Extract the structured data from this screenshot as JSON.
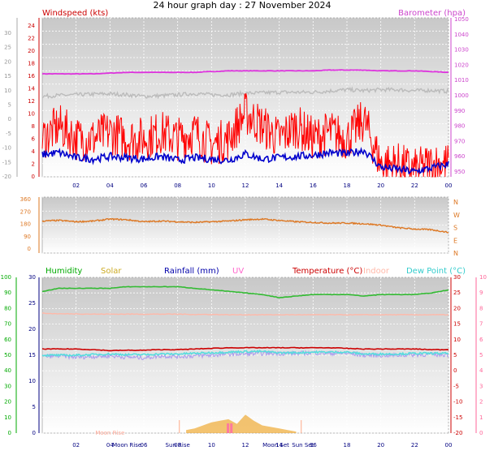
{
  "header": {
    "title": "24 hour graph day : 27 November 2024"
  },
  "x_ticks": [
    "02",
    "04",
    "06",
    "08",
    "10",
    "12",
    "14",
    "16",
    "18",
    "20",
    "22",
    "00"
  ],
  "colors": {
    "gust": "#ff0000",
    "wind": "#0000cc",
    "barometer": "#dd33dd",
    "gray": "#bbbbbb",
    "direction": "#dd7722",
    "humidity": "#33bb33",
    "solar": "#eeaa33",
    "rain": "#0000aa",
    "uv": "#ff66aa",
    "temp": "#cc0000",
    "indoor": "#ffb8a8",
    "dew": "#55dddd",
    "humidity_axis": "#00aa00",
    "uv_axis": "#ff6699",
    "baro_axis": "#cc44cc",
    "wind_axis": "#cc0000"
  },
  "chart_data": [
    {
      "type": "line",
      "title": "",
      "series_labels": {
        "wind": "Windspeed (kts)",
        "barometer": "Barometer (hpa)"
      },
      "y_left_ticks": [
        "24",
        "22",
        "20",
        "18",
        "16",
        "14",
        "12",
        "10",
        "8",
        "6",
        "4",
        "2",
        "0"
      ],
      "y_left_ticks_gray": [
        "30",
        "25",
        "20",
        "15",
        "10",
        "5",
        "0",
        "-5",
        "-10",
        "-15",
        "-20"
      ],
      "y_right_ticks": [
        "1050",
        "1040",
        "1030",
        "1020",
        "1010",
        "1000",
        "990",
        "980",
        "970",
        "960",
        "950"
      ],
      "ylim_wind": [
        0,
        25
      ],
      "ylim_baro": [
        945,
        1050
      ],
      "x": [
        0,
        1,
        2,
        3,
        4,
        5,
        6,
        7,
        8,
        9,
        10,
        11,
        12,
        13,
        14,
        15,
        16,
        17,
        18,
        19,
        20,
        21,
        22,
        23,
        24
      ],
      "series": [
        {
          "name": "Barometer (hpa)",
          "key": "barometer",
          "values": [
            1013,
            1013,
            1013,
            1013,
            1013.5,
            1014,
            1014,
            1014,
            1014,
            1014,
            1014.5,
            1015,
            1015,
            1015,
            1015,
            1015,
            1015,
            1015.5,
            1015.5,
            1015.5,
            1015,
            1015,
            1015,
            1014.5,
            1014
          ]
        },
        {
          "name": "",
          "key": "gray",
          "values": [
            5.3,
            5.6,
            5.8,
            6,
            6.1,
            5.8,
            5.3,
            5.5,
            5.8,
            6.2,
            5.8,
            5.8,
            6.3,
            6.4,
            6.6,
            6.6,
            6.6,
            7,
            7.4,
            7.1,
            7.4,
            7.4,
            7.1,
            7.2,
            6.9
          ]
        },
        {
          "name": "",
          "key": "gust",
          "values": [
            6,
            8,
            6,
            6,
            7,
            6,
            6,
            7,
            6,
            7,
            5,
            6,
            10,
            8,
            6,
            8,
            6,
            7,
            6,
            9,
            2,
            2,
            1,
            2,
            2
          ]
        },
        {
          "name": "",
          "key": "wind",
          "values": [
            3.5,
            3.8,
            3,
            2.8,
            3.2,
            3,
            2.8,
            3.2,
            2.6,
            3,
            2.8,
            2.6,
            3.6,
            2.8,
            3,
            3.2,
            3.4,
            3.8,
            3.6,
            4.2,
            1.5,
            1.2,
            0.8,
            1.4,
            2
          ]
        }
      ]
    },
    {
      "type": "line",
      "y_left_ticks": [
        "360",
        "270",
        "180",
        "90",
        "0"
      ],
      "y_right_ticks": [
        "N",
        "W",
        "S",
        "E",
        "N"
      ],
      "ylim": [
        0,
        360
      ],
      "x": [
        0,
        1,
        2,
        3,
        4,
        5,
        6,
        7,
        8,
        9,
        10,
        11,
        12,
        13,
        14,
        15,
        16,
        17,
        18,
        19,
        20,
        21,
        22,
        23,
        24
      ],
      "series": [
        {
          "name": "",
          "key": "direction",
          "values": [
            210,
            215,
            205,
            210,
            225,
            220,
            205,
            210,
            205,
            200,
            205,
            210,
            220,
            225,
            215,
            205,
            200,
            195,
            195,
            190,
            180,
            160,
            150,
            145,
            125
          ]
        }
      ]
    },
    {
      "type": "line",
      "series_labels": {
        "humidity": "Humidity",
        "solar": "Solar",
        "rain": "Rainfall (mm)",
        "uv": "UV",
        "temp": "Temperature (°C)",
        "indoor": "Indoor",
        "dew": "Dew Point (°C)"
      },
      "y_hum_ticks": [
        "100",
        "90",
        "80",
        "70",
        "60",
        "50",
        "40",
        "30",
        "20",
        "10",
        "0"
      ],
      "y_rain_ticks": [
        "30",
        "25",
        "20",
        "15",
        "10",
        "5",
        "0"
      ],
      "y_temp_ticks": [
        "30",
        "25",
        "20",
        "15",
        "10",
        "5",
        "0",
        "-5",
        "-10",
        "-15",
        "-20"
      ],
      "y_uv_ticks": [
        "10",
        "9",
        "8",
        "7",
        "6",
        "5",
        "4",
        "3",
        "2",
        "1",
        "0"
      ],
      "x": [
        0,
        1,
        2,
        3,
        4,
        5,
        6,
        7,
        8,
        9,
        10,
        11,
        12,
        13,
        14,
        15,
        16,
        17,
        18,
        19,
        20,
        21,
        22,
        23,
        24
      ],
      "series": [
        {
          "name": "Humidity",
          "key": "humidity",
          "values": [
            91,
            93,
            93,
            93,
            93,
            94,
            94,
            94,
            94,
            93,
            92,
            91,
            90,
            89,
            87,
            88,
            89,
            89,
            89,
            88,
            89,
            89,
            89,
            90,
            92
          ]
        },
        {
          "name": "Temperature (°C)",
          "key": "temp",
          "values": [
            7,
            7,
            7,
            6.8,
            6.5,
            6.6,
            6.6,
            6.8,
            6.8,
            7,
            7.2,
            7.4,
            7.4,
            7.4,
            7.4,
            7.4,
            7.4,
            7.4,
            7.2,
            7,
            7,
            7,
            7,
            6.8,
            6.8
          ]
        },
        {
          "name": "Indoor",
          "key": "indoor",
          "values": [
            18.5,
            18.3,
            18.3,
            18.2,
            18.2,
            18.2,
            18.2,
            18.2,
            18.2,
            18.1,
            18.1,
            18,
            18,
            18,
            18,
            18,
            18,
            18,
            18,
            18,
            18,
            18,
            18,
            18,
            18
          ]
        },
        {
          "name": "Dew Point (°C)",
          "key": "dew",
          "values": [
            5,
            5,
            5,
            5.2,
            5.4,
            5.2,
            5.2,
            5.4,
            5.4,
            5.6,
            5.8,
            6,
            6.2,
            6.2,
            5.8,
            5.8,
            6,
            6,
            6,
            5.4,
            5.4,
            5.4,
            5.6,
            5.6,
            5.6
          ]
        },
        {
          "name": "",
          "key": "lowtemp",
          "values": [
            4.6,
            4.8,
            4.4,
            4.6,
            4.8,
            4.4,
            4.2,
            4.8,
            4.6,
            4.8,
            5,
            5.4,
            5.4,
            5.6,
            5.6,
            5.6,
            5.8,
            5.6,
            5.6,
            5,
            5,
            5,
            5.2,
            5.2,
            5.2
          ]
        }
      ],
      "solar": {
        "x": [
          8.5,
          9,
          9.5,
          10,
          10.5,
          11,
          11.5,
          12,
          12.5,
          13,
          13.5,
          14,
          14.5,
          15
        ],
        "values": [
          2,
          3,
          5,
          7,
          8,
          9,
          6,
          12,
          8,
          5,
          4,
          3,
          2,
          1
        ]
      },
      "annotations": [
        "Moon Rise",
        "Sun Rise",
        "Moon Set",
        "Sun Set",
        "Moon Rise"
      ]
    }
  ]
}
